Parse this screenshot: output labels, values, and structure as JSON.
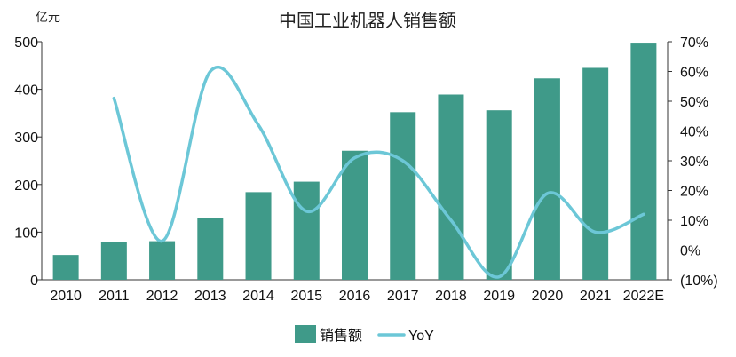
{
  "chart_data": {
    "type": "bar+line",
    "title": "中国工业机器人销售额",
    "y_left_unit": "亿元",
    "categories": [
      "2010",
      "2011",
      "2012",
      "2013",
      "2014",
      "2015",
      "2016",
      "2017",
      "2018",
      "2019",
      "2020",
      "2021",
      "2022E"
    ],
    "series": [
      {
        "name": "销售额",
        "type": "bar",
        "axis": "left",
        "color": "#3f9a89",
        "values": [
          52,
          79,
          81,
          130,
          184,
          206,
          271,
          352,
          389,
          356,
          423,
          445,
          498
        ]
      },
      {
        "name": "YoY",
        "type": "line",
        "axis": "right",
        "color": "#6cc7d7",
        "values": [
          null,
          51,
          3,
          60,
          42,
          13,
          31,
          30,
          10,
          -9,
          19,
          6,
          12
        ]
      }
    ],
    "y_left": {
      "min": 0,
      "max": 500,
      "ticks": [
        "0",
        "100",
        "200",
        "300",
        "400",
        "500"
      ]
    },
    "y_right": {
      "min": -10,
      "max": 70,
      "ticks": [
        "(10%)",
        "0%",
        "10%",
        "20%",
        "30%",
        "40%",
        "50%",
        "60%",
        "70%"
      ]
    },
    "grid": false,
    "legend_position": "bottom"
  }
}
